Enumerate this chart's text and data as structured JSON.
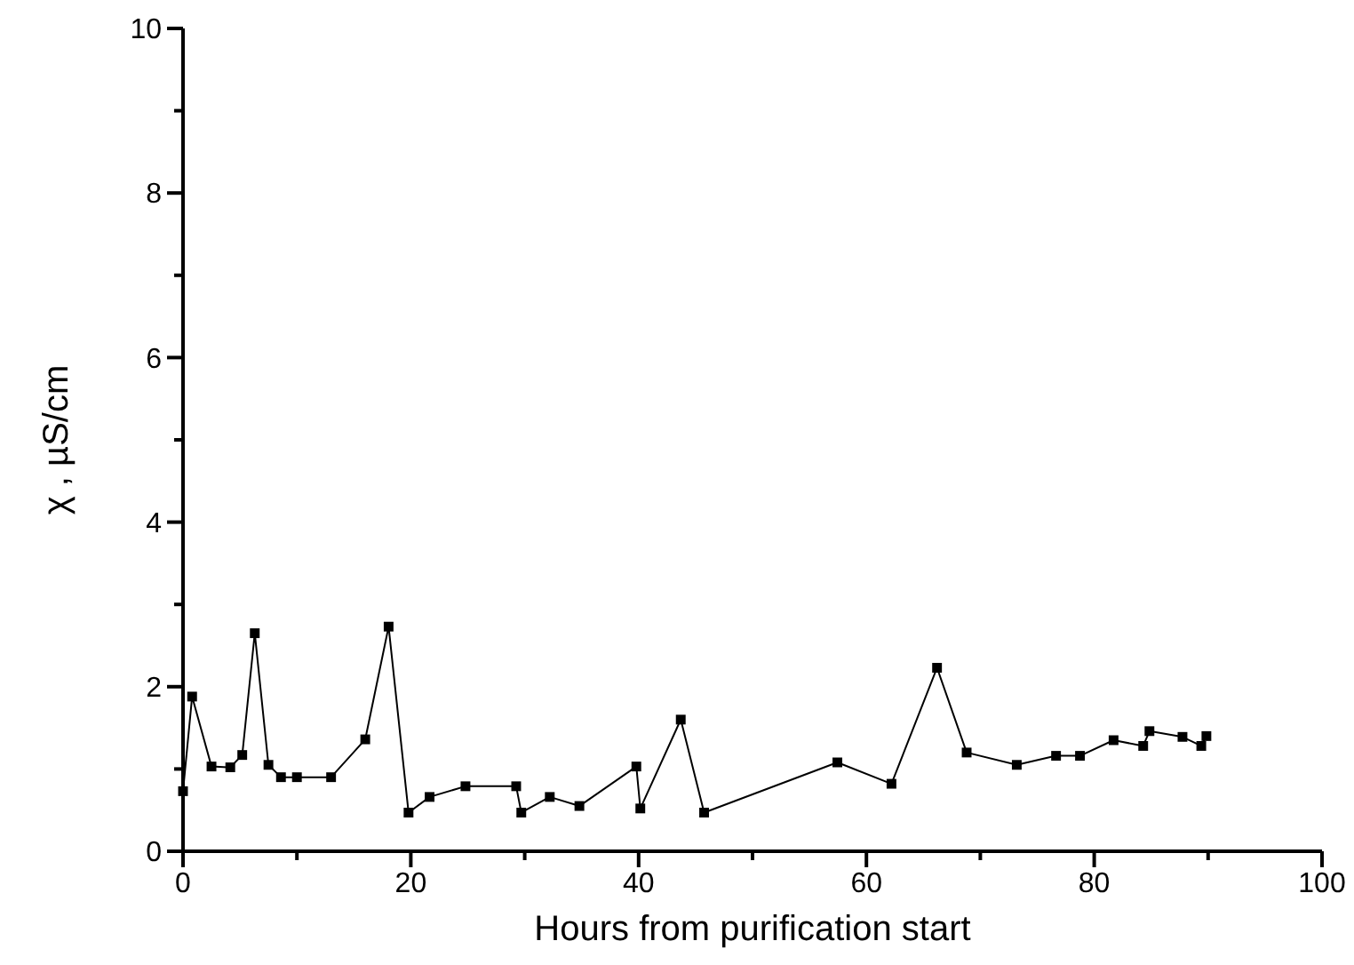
{
  "chart_data": {
    "type": "line",
    "xlabel": "Hours from purification start",
    "ylabel": "χ , µS/cm",
    "xlim": [
      0,
      100
    ],
    "ylim": [
      0,
      10
    ],
    "xticks": [
      0,
      {
        "value": 10,
        "label": null
      },
      20,
      {
        "value": 30,
        "label": null
      },
      40,
      {
        "value": 50,
        "label": null
      },
      60,
      {
        "value": 70,
        "label": null
      },
      80,
      {
        "value": 90,
        "label": null
      },
      100
    ],
    "yticks": [
      0,
      {
        "value": 1,
        "label": null
      },
      2,
      {
        "value": 3,
        "label": null
      },
      4,
      {
        "value": 5,
        "label": null
      },
      6,
      {
        "value": 7,
        "label": null
      },
      8,
      {
        "value": 9,
        "label": null
      },
      10
    ],
    "marker": "square",
    "line_style": "solid",
    "series": [
      {
        "color": "#000000",
        "x": [
          0,
          0.8,
          2.5,
          4.15,
          5.2,
          6.3,
          7.5,
          8.6,
          10,
          13,
          16,
          18.05,
          19.8,
          21.65,
          24.8,
          29.25,
          29.7,
          32.2,
          34.8,
          39.8,
          40.15,
          43.7,
          45.75,
          57.45,
          62.2,
          66.2,
          68.8,
          73.2,
          76.65,
          78.75,
          81.7,
          84.3,
          84.85,
          87.75,
          89.4,
          89.85
        ],
        "values": [
          0.73,
          1.88,
          1.03,
          1.02,
          1.17,
          2.65,
          1.05,
          0.9,
          0.9,
          0.9,
          1.36,
          2.73,
          0.47,
          0.66,
          0.79,
          0.79,
          0.47,
          0.66,
          0.55,
          1.03,
          0.52,
          1.6,
          0.47,
          1.08,
          0.82,
          2.23,
          1.2,
          1.05,
          1.16,
          1.16,
          1.35,
          1.28,
          1.46,
          1.39,
          1.28,
          1.4
        ]
      }
    ]
  }
}
